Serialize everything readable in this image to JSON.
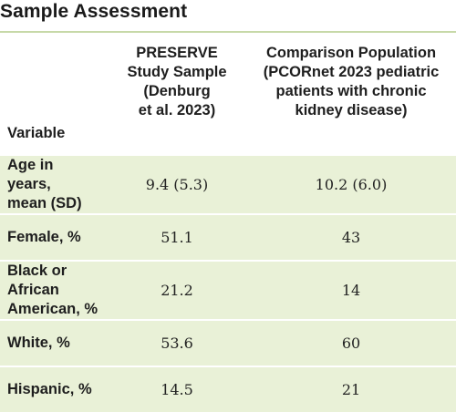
{
  "title": "Sample Assessment",
  "table": {
    "headers": {
      "variable": "Variable",
      "preserve": "PRESERVE\nStudy Sample\n(Denburg\net al. 2023)",
      "comparison": "Comparison Population\n(PCORnet 2023 pediatric\npatients with chronic\nkidney disease)"
    },
    "rows": [
      {
        "variable": "Age in years,\nmean (SD)",
        "preserve": "9.4 (5.3)",
        "comparison": "10.2 (6.0)"
      },
      {
        "variable": "Female, %",
        "preserve": "51.1",
        "comparison": "43"
      },
      {
        "variable": "Black or African\nAmerican, %",
        "preserve": "21.2",
        "comparison": "14"
      },
      {
        "variable": "White, %",
        "preserve": "53.6",
        "comparison": "60"
      },
      {
        "variable": "Hispanic, %",
        "preserve": "14.5",
        "comparison": "21"
      }
    ]
  },
  "colors": {
    "row_background": "#e9f1d7",
    "header_rule": "#c7d9a8"
  }
}
